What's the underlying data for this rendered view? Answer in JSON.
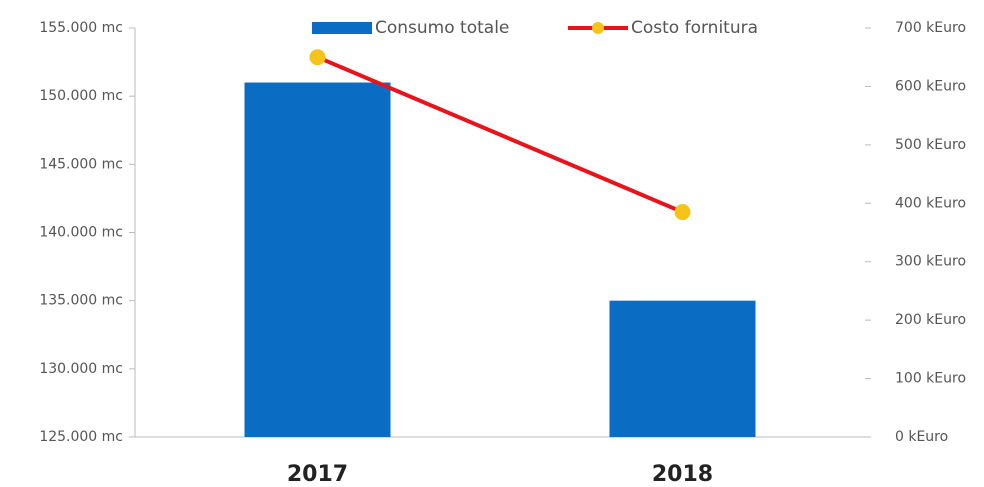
{
  "chart_data": {
    "type": "bar-line",
    "categories": [
      "2017",
      "2018"
    ],
    "series": [
      {
        "name": "Consumo totale",
        "type": "bar",
        "color": "#0b6cc3",
        "values": [
          151000,
          135000
        ]
      },
      {
        "name": "Costo fornitura",
        "type": "line",
        "axis": "y2",
        "color": "#e8141c",
        "marker_color": "#f6c31b",
        "values": [
          650,
          385
        ]
      }
    ],
    "ylim": [
      125000,
      155000
    ],
    "yticks": [
      {
        "value": 125000,
        "label": "125.000 mc"
      },
      {
        "value": 130000,
        "label": "130.000 mc"
      },
      {
        "value": 135000,
        "label": "135.000 mc"
      },
      {
        "value": 140000,
        "label": "140.000 mc"
      },
      {
        "value": 145000,
        "label": "145.000 mc"
      },
      {
        "value": 150000,
        "label": "150.000 mc"
      },
      {
        "value": 155000,
        "label": "155.000 mc"
      }
    ],
    "y2lim": [
      0,
      700
    ],
    "y2ticks": [
      {
        "value": 0,
        "label": "0 kEuro"
      },
      {
        "value": 100,
        "label": "100 kEuro"
      },
      {
        "value": 200,
        "label": "200 kEuro"
      },
      {
        "value": 300,
        "label": "300 kEuro"
      },
      {
        "value": 400,
        "label": "400 kEuro"
      },
      {
        "value": 500,
        "label": "500 kEuro"
      },
      {
        "value": 600,
        "label": "600 kEuro"
      },
      {
        "value": 700,
        "label": "700 kEuro"
      }
    ],
    "grid": false,
    "legend": "top"
  }
}
